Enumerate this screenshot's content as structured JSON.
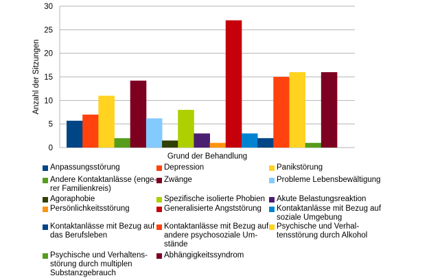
{
  "chart_data": {
    "type": "bar",
    "title": "",
    "xlabel": "Grund der Behandlung",
    "ylabel": "Anzahl der Sitzungen",
    "ylim": [
      0,
      30
    ],
    "yticks": [
      0,
      5,
      10,
      15,
      20,
      25,
      30
    ],
    "grid": true,
    "legend_position": "bottom",
    "series": [
      {
        "name": "Anpassungsstörung",
        "value": 5.7,
        "color": "#004586"
      },
      {
        "name": "Depression",
        "value": 7,
        "color": "#ff420e"
      },
      {
        "name": "Panikstörung",
        "value": 11,
        "color": "#ffd320"
      },
      {
        "name": "Andere Kontaktanlässe (enge-\nrer Familienkreis)",
        "value": 2,
        "color": "#579d1c"
      },
      {
        "name": "Zwänge",
        "value": 14.2,
        "color": "#7e0021"
      },
      {
        "name": "Probleme Lebensbewältigung",
        "value": 6.2,
        "color": "#83caff"
      },
      {
        "name": "Agoraphobie",
        "value": 1.5,
        "color": "#314004"
      },
      {
        "name": "Spezifische isolierte Phobien",
        "value": 8,
        "color": "#aecf00"
      },
      {
        "name": "Akute Belastungsreaktion",
        "value": 3,
        "color": "#4b1f6f"
      },
      {
        "name": "Persönlichkeitsstörung",
        "value": 1,
        "color": "#ff950e"
      },
      {
        "name": "Generalisierte Angststörung",
        "value": 27,
        "color": "#c5000b"
      },
      {
        "name": "Kontaktanlässe mit Bezug auf\nsoziale Umgebung",
        "value": 3,
        "color": "#0084d1"
      },
      {
        "name": "Kontaktanlässe mit Bezug auf\ndas Berufsleben",
        "value": 2,
        "color": "#004586"
      },
      {
        "name": "Kontaktanlässe mit Bezug auf\nandere psychosoziale Um-\nstände",
        "value": 15,
        "color": "#ff420e"
      },
      {
        "name": "Psychische und Verhal-\ntensstörung durch Alkohol",
        "value": 16,
        "color": "#ffd320"
      },
      {
        "name": "Psychische und Verhaltens-\nstörung durch multiplen\nSubstanzgebrauch",
        "value": 1,
        "color": "#579d1c"
      },
      {
        "name": "Abhängigkeitssyndrom",
        "value": 16,
        "color": "#7e0021"
      }
    ]
  }
}
